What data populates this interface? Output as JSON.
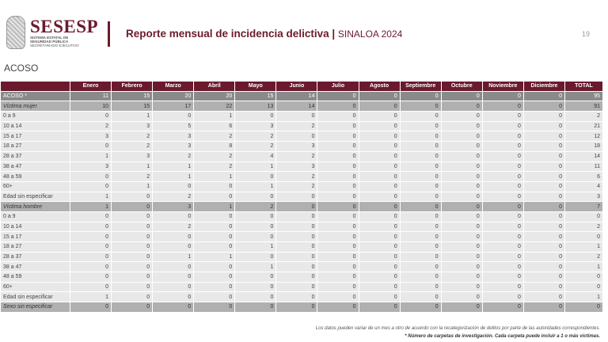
{
  "header": {
    "logo_text": "SESESP",
    "logo_subtitle": "SISTEMA ESTATAL DE SEGURIDAD PÚBLICA",
    "logo_sub2": "SECRETARIADO EJECUTIVO",
    "report_title": "Reporte mensual de incidencia delictiva",
    "separator": "|",
    "region": "SINALOA 2024",
    "page_number": "19",
    "accent_color": "#6b1a2e"
  },
  "section_title": "ACOSO",
  "table": {
    "columns": [
      "",
      "Enero",
      "Febrero",
      "Marzo",
      "Abril",
      "Mayo",
      "Junio",
      "Julio",
      "Agosto",
      "Septiembre",
      "Octubre",
      "Noviembre",
      "Diciembre",
      "TOTAL"
    ],
    "rows": [
      {
        "type": "total",
        "label": "ACOSO *",
        "values": [
          "11",
          "15",
          "20",
          "20",
          "15",
          "14",
          "0",
          "0",
          "0",
          "0",
          "0",
          "0",
          "95"
        ]
      },
      {
        "type": "sub",
        "label": "Víctima mujer",
        "values": [
          "10",
          "15",
          "17",
          "22",
          "13",
          "14",
          "0",
          "0",
          "0",
          "0",
          "0",
          "0",
          "91"
        ]
      },
      {
        "type": "row",
        "label": "0 a 9",
        "values": [
          "0",
          "1",
          "0",
          "1",
          "0",
          "0",
          "0",
          "0",
          "0",
          "0",
          "0",
          "0",
          "2"
        ]
      },
      {
        "type": "row",
        "label": "10 a 14",
        "values": [
          "2",
          "3",
          "5",
          "6",
          "3",
          "2",
          "0",
          "0",
          "0",
          "0",
          "0",
          "0",
          "21"
        ]
      },
      {
        "type": "row",
        "label": "15 a 17",
        "values": [
          "3",
          "2",
          "3",
          "2",
          "2",
          "0",
          "0",
          "0",
          "0",
          "0",
          "0",
          "0",
          "12"
        ]
      },
      {
        "type": "row",
        "label": "18 a 27",
        "values": [
          "0",
          "2",
          "3",
          "8",
          "2",
          "3",
          "0",
          "0",
          "0",
          "0",
          "0",
          "0",
          "18"
        ]
      },
      {
        "type": "row",
        "label": "28 a 37",
        "values": [
          "1",
          "3",
          "2",
          "2",
          "4",
          "2",
          "0",
          "0",
          "0",
          "0",
          "0",
          "0",
          "14"
        ]
      },
      {
        "type": "row",
        "label": "38 a 47",
        "values": [
          "3",
          "1",
          "1",
          "2",
          "1",
          "3",
          "0",
          "0",
          "0",
          "0",
          "0",
          "0",
          "11"
        ]
      },
      {
        "type": "row",
        "label": "48 a 59",
        "values": [
          "0",
          "2",
          "1",
          "1",
          "0",
          "2",
          "0",
          "0",
          "0",
          "0",
          "0",
          "0",
          "6"
        ]
      },
      {
        "type": "row",
        "label": "60+",
        "values": [
          "0",
          "1",
          "0",
          "0",
          "1",
          "2",
          "0",
          "0",
          "0",
          "0",
          "0",
          "0",
          "4"
        ]
      },
      {
        "type": "row",
        "label": "Edad sin especificar",
        "values": [
          "1",
          "0",
          "2",
          "0",
          "0",
          "0",
          "0",
          "0",
          "0",
          "0",
          "0",
          "0",
          "3"
        ]
      },
      {
        "type": "sub",
        "label": "Víctima hombre",
        "values": [
          "1",
          "0",
          "3",
          "1",
          "2",
          "0",
          "0",
          "0",
          "0",
          "0",
          "0",
          "0",
          "7"
        ]
      },
      {
        "type": "row",
        "label": "0 a 9",
        "values": [
          "0",
          "0",
          "0",
          "0",
          "0",
          "0",
          "0",
          "0",
          "0",
          "0",
          "0",
          "0",
          "0"
        ]
      },
      {
        "type": "row",
        "label": "10 a 14",
        "values": [
          "0",
          "0",
          "2",
          "0",
          "0",
          "0",
          "0",
          "0",
          "0",
          "0",
          "0",
          "0",
          "2"
        ]
      },
      {
        "type": "row",
        "label": "15 a 17",
        "values": [
          "0",
          "0",
          "0",
          "0",
          "0",
          "0",
          "0",
          "0",
          "0",
          "0",
          "0",
          "0",
          "0"
        ]
      },
      {
        "type": "row",
        "label": "18 a 27",
        "values": [
          "0",
          "0",
          "0",
          "0",
          "1",
          "0",
          "0",
          "0",
          "0",
          "0",
          "0",
          "0",
          "1"
        ]
      },
      {
        "type": "row",
        "label": "28 a 37",
        "values": [
          "0",
          "0",
          "1",
          "1",
          "0",
          "0",
          "0",
          "0",
          "0",
          "0",
          "0",
          "0",
          "2"
        ]
      },
      {
        "type": "row",
        "label": "38 a 47",
        "values": [
          "0",
          "0",
          "0",
          "0",
          "1",
          "0",
          "0",
          "0",
          "0",
          "0",
          "0",
          "0",
          "1"
        ]
      },
      {
        "type": "row",
        "label": "48 a 59",
        "values": [
          "0",
          "0",
          "0",
          "0",
          "0",
          "0",
          "0",
          "0",
          "0",
          "0",
          "0",
          "0",
          "0"
        ]
      },
      {
        "type": "row",
        "label": "60+",
        "values": [
          "0",
          "0",
          "0",
          "0",
          "0",
          "0",
          "0",
          "0",
          "0",
          "0",
          "0",
          "0",
          "0"
        ]
      },
      {
        "type": "row",
        "label": "Edad sin especificar",
        "values": [
          "1",
          "0",
          "0",
          "0",
          "0",
          "0",
          "0",
          "0",
          "0",
          "0",
          "0",
          "0",
          "1"
        ]
      },
      {
        "type": "sub",
        "label": "Sexo sin especificar",
        "values": [
          "0",
          "0",
          "0",
          "0",
          "0",
          "0",
          "0",
          "0",
          "0",
          "0",
          "0",
          "0",
          "0"
        ]
      }
    ]
  },
  "footer": {
    "note": "Los datos pueden variar de un mes a otro de acuerdo con la recategorización de delitos por parte de las autoridades correspondientes.",
    "footnote": "* Número de carpetas de investigación. Cada carpeta puede incluir a 1 o más víctimas."
  }
}
